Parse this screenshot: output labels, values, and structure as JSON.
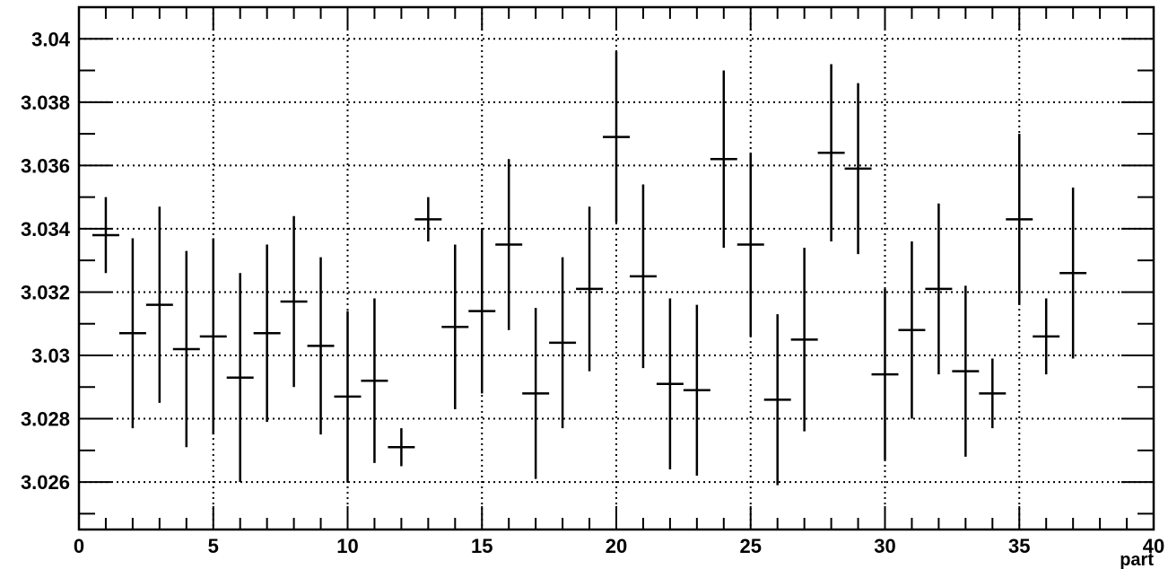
{
  "chart_data": {
    "type": "scatter",
    "title": "",
    "xlabel": "part",
    "ylabel": "",
    "xlim": [
      0,
      40
    ],
    "ylim": [
      3.0245,
      3.041
    ],
    "grid": true,
    "x_ticks": [
      0,
      5,
      10,
      15,
      20,
      25,
      30,
      35,
      40
    ],
    "x_tick_labels": [
      "0",
      "5",
      "10",
      "15",
      "20",
      "25",
      "30",
      "35",
      "40"
    ],
    "y_ticks": [
      3.026,
      3.028,
      3.03,
      3.032,
      3.034,
      3.036,
      3.038,
      3.04
    ],
    "y_tick_labels": [
      "3.026",
      "3.028",
      "3.03",
      "3.032",
      "3.034",
      "3.036",
      "3.038",
      "3.04"
    ],
    "x_error": 0.5,
    "points": [
      {
        "x": 1,
        "y": 3.0338,
        "err": 0.0012
      },
      {
        "x": 2,
        "y": 3.0307,
        "err": 0.003
      },
      {
        "x": 3,
        "y": 3.0316,
        "err": 0.0031
      },
      {
        "x": 4,
        "y": 3.0302,
        "err": 0.0031
      },
      {
        "x": 5,
        "y": 3.0306,
        "err": 0.0031
      },
      {
        "x": 6,
        "y": 3.0293,
        "err": 0.0033
      },
      {
        "x": 7,
        "y": 3.0307,
        "err": 0.0028
      },
      {
        "x": 8,
        "y": 3.0317,
        "err": 0.0027
      },
      {
        "x": 9,
        "y": 3.0303,
        "err": 0.0028
      },
      {
        "x": 10,
        "y": 3.0287,
        "err": 0.0027
      },
      {
        "x": 11,
        "y": 3.0292,
        "err": 0.0026
      },
      {
        "x": 12,
        "y": 3.0271,
        "err": 0.0006
      },
      {
        "x": 13,
        "y": 3.0343,
        "err": 0.0007
      },
      {
        "x": 14,
        "y": 3.0309,
        "err": 0.0026
      },
      {
        "x": 15,
        "y": 3.0314,
        "err": 0.0026
      },
      {
        "x": 16,
        "y": 3.0335,
        "err": 0.0027
      },
      {
        "x": 17,
        "y": 3.0288,
        "err": 0.0027
      },
      {
        "x": 18,
        "y": 3.0304,
        "err": 0.0027
      },
      {
        "x": 19,
        "y": 3.0321,
        "err": 0.0026
      },
      {
        "x": 20,
        "y": 3.0369,
        "err": 0.0027
      },
      {
        "x": 21,
        "y": 3.0325,
        "err": 0.0029
      },
      {
        "x": 22,
        "y": 3.0291,
        "err": 0.0027
      },
      {
        "x": 23,
        "y": 3.0289,
        "err": 0.0027
      },
      {
        "x": 24,
        "y": 3.0362,
        "err": 0.0028
      },
      {
        "x": 25,
        "y": 3.0335,
        "err": 0.0029
      },
      {
        "x": 26,
        "y": 3.0286,
        "err": 0.0027
      },
      {
        "x": 27,
        "y": 3.0305,
        "err": 0.0029
      },
      {
        "x": 28,
        "y": 3.0364,
        "err": 0.0028
      },
      {
        "x": 29,
        "y": 3.0359,
        "err": 0.0027
      },
      {
        "x": 30,
        "y": 3.0294,
        "err": 0.0027
      },
      {
        "x": 31,
        "y": 3.0308,
        "err": 0.0028
      },
      {
        "x": 32,
        "y": 3.0321,
        "err": 0.0027
      },
      {
        "x": 33,
        "y": 3.0295,
        "err": 0.0027
      },
      {
        "x": 34,
        "y": 3.0288,
        "err": 0.0011
      },
      {
        "x": 35,
        "y": 3.0343,
        "err": 0.0027
      },
      {
        "x": 36,
        "y": 3.0306,
        "err": 0.0012
      },
      {
        "x": 37,
        "y": 3.0326,
        "err": 0.0027
      }
    ]
  }
}
